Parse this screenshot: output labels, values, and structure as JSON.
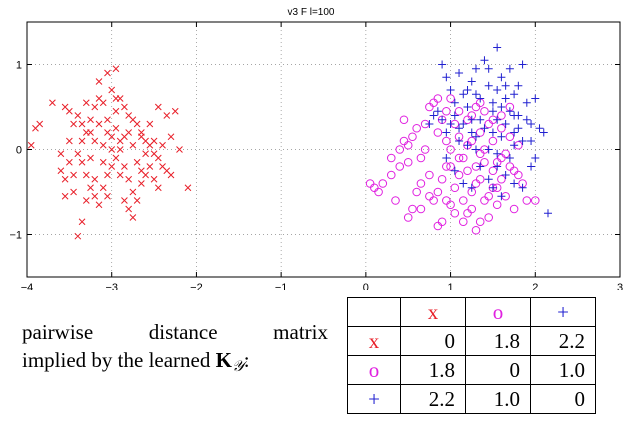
{
  "chart_data": {
    "type": "scatter",
    "title": "v3 F l=100",
    "xlim": [
      -4,
      3
    ],
    "ylim": [
      -1.5,
      1.5
    ],
    "xticks": [
      -4,
      -3,
      -2,
      -1,
      0,
      1,
      2,
      3
    ],
    "xtick_labels": [
      "−4",
      "−3",
      "−2",
      "−1",
      "0",
      "1",
      "2",
      "3"
    ],
    "yticks": [
      -1,
      0,
      1
    ],
    "ytick_labels": [
      "−1",
      "0",
      "1"
    ],
    "grid": true,
    "series": [
      {
        "marker": "x",
        "color": "#e8202a",
        "points": [
          [
            -3.9,
            0.25
          ],
          [
            -3.85,
            0.3
          ],
          [
            -3.95,
            0.05
          ],
          [
            -3.55,
            0.5
          ],
          [
            -3.5,
            0.45
          ],
          [
            -3.45,
            0.3
          ],
          [
            -3.6,
            -0.25
          ],
          [
            -3.55,
            -0.35
          ],
          [
            -3.45,
            -0.3
          ],
          [
            -3.5,
            -0.15
          ],
          [
            -3.4,
            -0.05
          ],
          [
            -3.35,
            0.1
          ],
          [
            -3.3,
            0.2
          ],
          [
            -3.25,
            0.35
          ],
          [
            -3.2,
            0.5
          ],
          [
            -3.15,
            0.6
          ],
          [
            -3.1,
            0.55
          ],
          [
            -3.05,
            0.9
          ],
          [
            -2.95,
            0.95
          ],
          [
            -3.0,
            0.7
          ],
          [
            -2.9,
            0.6
          ],
          [
            -2.85,
            0.5
          ],
          [
            -2.8,
            0.4
          ],
          [
            -2.75,
            0.35
          ],
          [
            -2.7,
            0.3
          ],
          [
            -2.65,
            0.2
          ],
          [
            -2.6,
            0.1
          ],
          [
            -2.55,
            0.05
          ],
          [
            -2.5,
            -0.05
          ],
          [
            -2.45,
            -0.1
          ],
          [
            -2.4,
            -0.2
          ],
          [
            -2.35,
            -0.25
          ],
          [
            -2.3,
            -0.3
          ],
          [
            -2.2,
            0.0
          ],
          [
            -2.1,
            -0.45
          ],
          [
            -2.25,
            0.45
          ],
          [
            -2.35,
            0.4
          ],
          [
            -2.45,
            0.5
          ],
          [
            -2.55,
            0.3
          ],
          [
            -2.65,
            0.15
          ],
          [
            -2.75,
            0.05
          ],
          [
            -2.85,
            0.15
          ],
          [
            -2.95,
            0.25
          ],
          [
            -3.05,
            0.35
          ],
          [
            -3.15,
            0.3
          ],
          [
            -3.25,
            0.2
          ],
          [
            -3.35,
            -0.15
          ],
          [
            -3.3,
            -0.3
          ],
          [
            -3.25,
            -0.45
          ],
          [
            -3.2,
            -0.55
          ],
          [
            -3.15,
            -0.65
          ],
          [
            -3.1,
            -0.45
          ],
          [
            -3.05,
            -0.3
          ],
          [
            -3.0,
            -0.2
          ],
          [
            -2.95,
            -0.1
          ],
          [
            -2.9,
            0.0
          ],
          [
            -2.85,
            -0.2
          ],
          [
            -2.8,
            -0.35
          ],
          [
            -2.75,
            -0.5
          ],
          [
            -2.7,
            -0.6
          ],
          [
            -2.65,
            -0.4
          ],
          [
            -2.6,
            -0.3
          ],
          [
            -2.55,
            -0.2
          ],
          [
            -2.5,
            -0.35
          ],
          [
            -2.45,
            -0.45
          ],
          [
            -2.8,
            -0.7
          ],
          [
            -3.35,
            -0.85
          ],
          [
            -3.4,
            -1.02
          ],
          [
            -3.3,
            -0.6
          ],
          [
            -3.05,
            0.2
          ],
          [
            -2.9,
            0.1
          ],
          [
            -2.7,
            -0.15
          ],
          [
            -2.6,
            -0.05
          ],
          [
            -3.2,
            0.1
          ],
          [
            -3.1,
            0.05
          ],
          [
            -3.0,
            0.0
          ],
          [
            -2.95,
            0.45
          ],
          [
            -3.15,
            0.8
          ],
          [
            -3.4,
            0.4
          ],
          [
            -3.5,
            0.1
          ],
          [
            -3.6,
            -0.05
          ],
          [
            -3.7,
            0.55
          ],
          [
            -3.25,
            -0.1
          ],
          [
            -2.8,
            0.2
          ],
          [
            -3.0,
            0.15
          ],
          [
            -2.9,
            -0.3
          ],
          [
            -3.1,
            -0.15
          ],
          [
            -2.65,
            -0.25
          ],
          [
            -2.4,
            0.05
          ],
          [
            -2.3,
            0.15
          ],
          [
            -3.45,
            -0.5
          ],
          [
            -3.55,
            -0.55
          ],
          [
            -2.85,
            -0.6
          ],
          [
            -2.75,
            -0.8
          ],
          [
            -3.3,
            0.55
          ],
          [
            -2.95,
            0.6
          ],
          [
            -3.2,
            -0.35
          ],
          [
            -2.5,
            0.1
          ],
          [
            -3.35,
            0.3
          ],
          [
            -3.05,
            -0.55
          ]
        ]
      },
      {
        "marker": "o",
        "color": "#e020e0",
        "points": [
          [
            0.05,
            -0.4
          ],
          [
            0.1,
            -0.45
          ],
          [
            0.15,
            -0.5
          ],
          [
            0.2,
            -0.4
          ],
          [
            0.3,
            -0.3
          ],
          [
            0.35,
            -0.6
          ],
          [
            0.45,
            0.1
          ],
          [
            0.5,
            -0.8
          ],
          [
            0.55,
            -0.7
          ],
          [
            0.6,
            -0.5
          ],
          [
            0.65,
            -0.4
          ],
          [
            0.7,
            0.0
          ],
          [
            0.75,
            -0.3
          ],
          [
            0.8,
            -0.6
          ],
          [
            0.85,
            0.2
          ],
          [
            0.85,
            -0.9
          ],
          [
            0.9,
            -0.85
          ],
          [
            0.9,
            0.35
          ],
          [
            0.95,
            0.1
          ],
          [
            0.95,
            -0.2
          ],
          [
            1.0,
            -0.65
          ],
          [
            1.0,
            0.0
          ],
          [
            1.05,
            0.3
          ],
          [
            1.05,
            -0.45
          ],
          [
            1.1,
            -0.3
          ],
          [
            1.1,
            0.15
          ],
          [
            1.15,
            -0.1
          ],
          [
            1.15,
            -0.6
          ],
          [
            1.2,
            0.05
          ],
          [
            1.2,
            -0.75
          ],
          [
            1.25,
            -0.5
          ],
          [
            1.25,
            0.4
          ],
          [
            1.3,
            -0.2
          ],
          [
            1.3,
            -0.95
          ],
          [
            1.35,
            0.2
          ],
          [
            1.35,
            -0.35
          ],
          [
            1.4,
            -0.6
          ],
          [
            1.4,
            0.0
          ],
          [
            1.45,
            0.3
          ],
          [
            1.45,
            -0.8
          ],
          [
            1.5,
            -0.45
          ],
          [
            1.5,
            0.1
          ],
          [
            1.55,
            -0.15
          ],
          [
            1.55,
            -0.65
          ],
          [
            1.6,
            0.25
          ],
          [
            1.6,
            -0.35
          ],
          [
            1.65,
            -0.05
          ],
          [
            1.65,
            -0.55
          ],
          [
            1.7,
            0.15
          ],
          [
            1.75,
            -0.25
          ],
          [
            1.75,
            -0.7
          ],
          [
            1.8,
            0.05
          ],
          [
            1.85,
            -0.4
          ],
          [
            1.9,
            -0.6
          ],
          [
            2.0,
            -0.6
          ],
          [
            0.7,
            0.3
          ],
          [
            0.75,
            0.5
          ],
          [
            0.8,
            0.55
          ],
          [
            0.85,
            0.6
          ],
          [
            0.6,
            0.25
          ],
          [
            0.65,
            -0.1
          ],
          [
            0.55,
            0.15
          ],
          [
            0.5,
            -0.15
          ],
          [
            0.4,
            -0.2
          ],
          [
            0.3,
            -0.1
          ],
          [
            0.95,
            0.45
          ],
          [
            1.0,
            0.6
          ],
          [
            1.1,
            0.45
          ],
          [
            1.2,
            0.35
          ],
          [
            1.3,
            0.5
          ],
          [
            1.35,
            0.55
          ],
          [
            1.4,
            0.45
          ],
          [
            1.5,
            0.35
          ],
          [
            1.6,
            0.4
          ],
          [
            1.7,
            0.5
          ],
          [
            1.15,
            -0.85
          ],
          [
            1.25,
            -0.7
          ],
          [
            1.35,
            -0.85
          ],
          [
            1.05,
            -0.75
          ],
          [
            0.95,
            -0.6
          ],
          [
            0.85,
            -0.5
          ],
          [
            0.75,
            -0.55
          ],
          [
            0.65,
            -0.7
          ],
          [
            0.9,
            -0.35
          ],
          [
            1.0,
            -0.2
          ],
          [
            1.1,
            -0.1
          ],
          [
            1.2,
            -0.25
          ],
          [
            1.3,
            -0.4
          ],
          [
            1.4,
            -0.15
          ],
          [
            1.5,
            -0.25
          ],
          [
            1.6,
            -0.1
          ],
          [
            1.7,
            -0.2
          ],
          [
            1.8,
            -0.3
          ],
          [
            1.45,
            -0.55
          ],
          [
            1.55,
            -0.45
          ],
          [
            0.45,
            0.35
          ],
          [
            0.5,
            0.05
          ],
          [
            0.4,
            0.0
          ],
          [
            1.25,
            0.1
          ],
          [
            1.35,
            -0.05
          ]
        ]
      },
      {
        "marker": "+",
        "color": "#2020d0",
        "points": [
          [
            0.9,
            1.0
          ],
          [
            0.95,
            0.85
          ],
          [
            1.0,
            0.7
          ],
          [
            1.05,
            0.55
          ],
          [
            1.1,
            0.9
          ],
          [
            1.15,
            0.65
          ],
          [
            1.2,
            0.5
          ],
          [
            1.25,
            0.8
          ],
          [
            1.3,
            0.95
          ],
          [
            1.35,
            0.6
          ],
          [
            1.4,
            1.05
          ],
          [
            1.45,
            0.75
          ],
          [
            1.5,
            0.45
          ],
          [
            1.55,
            1.2
          ],
          [
            1.6,
            0.85
          ],
          [
            1.65,
            0.6
          ],
          [
            1.7,
            0.95
          ],
          [
            1.75,
            0.4
          ],
          [
            1.8,
            0.75
          ],
          [
            1.85,
            1.0
          ],
          [
            1.9,
            0.55
          ],
          [
            1.95,
            0.3
          ],
          [
            2.0,
            0.6
          ],
          [
            2.05,
            0.25
          ],
          [
            2.1,
            0.2
          ],
          [
            2.15,
            -0.75
          ],
          [
            1.95,
            -0.2
          ],
          [
            2.0,
            -0.1
          ],
          [
            1.85,
            0.1
          ],
          [
            1.8,
            0.25
          ],
          [
            1.75,
            0.05
          ],
          [
            1.7,
            -0.1
          ],
          [
            1.65,
            0.3
          ],
          [
            1.6,
            0.15
          ],
          [
            1.55,
            -0.05
          ],
          [
            1.5,
            0.2
          ],
          [
            1.45,
            0.0
          ],
          [
            1.4,
            0.25
          ],
          [
            1.35,
            0.35
          ],
          [
            1.3,
            0.15
          ],
          [
            1.25,
            0.2
          ],
          [
            1.2,
            0.05
          ],
          [
            1.15,
            0.3
          ],
          [
            1.1,
            0.25
          ],
          [
            1.05,
            0.4
          ],
          [
            1.0,
            0.3
          ],
          [
            0.95,
            0.2
          ],
          [
            0.9,
            0.35
          ],
          [
            0.85,
            0.45
          ],
          [
            0.8,
            0.4
          ],
          [
            0.75,
            0.3
          ],
          [
            1.5,
            0.55
          ],
          [
            1.6,
            0.5
          ],
          [
            1.7,
            0.45
          ],
          [
            1.8,
            0.4
          ],
          [
            1.9,
            0.35
          ],
          [
            1.85,
            -0.45
          ],
          [
            1.75,
            -0.4
          ],
          [
            1.65,
            -0.3
          ],
          [
            1.55,
            -0.2
          ],
          [
            1.45,
            -0.35
          ],
          [
            1.35,
            -0.2
          ],
          [
            1.25,
            -0.45
          ],
          [
            1.15,
            -0.4
          ],
          [
            1.05,
            -0.25
          ],
          [
            0.95,
            -0.1
          ],
          [
            1.2,
            0.7
          ],
          [
            1.3,
            0.65
          ],
          [
            1.45,
            0.95
          ],
          [
            1.55,
            0.7
          ],
          [
            1.65,
            0.75
          ],
          [
            1.75,
            0.65
          ],
          [
            1.25,
            0.35
          ],
          [
            1.55,
            0.35
          ],
          [
            1.75,
            0.2
          ],
          [
            1.95,
            0.1
          ],
          [
            1.1,
            0.1
          ],
          [
            1.3,
            0.0
          ],
          [
            1.5,
            -0.45
          ],
          [
            1.6,
            -0.55
          ]
        ]
      }
    ]
  },
  "caption": {
    "line1": "pairwise distance matrix",
    "line2_prefix": "implied by the learned ",
    "line2_math": "K",
    "line2_sub": "𝒴",
    "line2_suffix": ":"
  },
  "matrix": {
    "header": [
      "x",
      "o",
      "+"
    ],
    "header_colors": [
      "#e8202a",
      "#e020e0",
      "#2020d0"
    ],
    "rows": [
      {
        "label": "x",
        "values": [
          "0",
          "1.8",
          "2.2"
        ]
      },
      {
        "label": "o",
        "values": [
          "1.8",
          "0",
          "1.0"
        ]
      },
      {
        "label": "+",
        "values": [
          "2.2",
          "1.0",
          "0"
        ]
      }
    ]
  }
}
